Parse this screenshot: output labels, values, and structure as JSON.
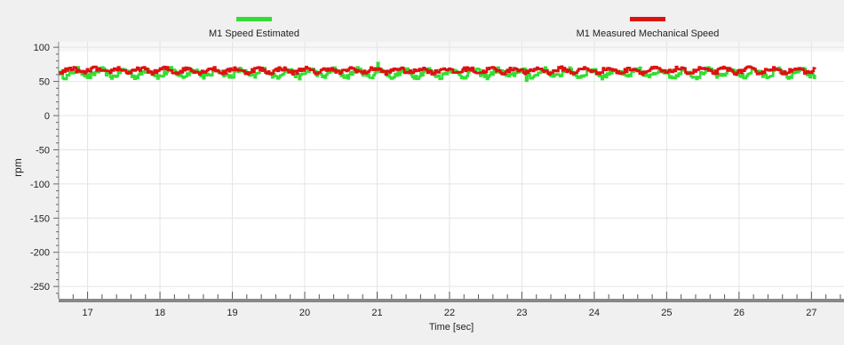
{
  "chart_data": {
    "type": "line",
    "title": "",
    "xlabel": "Time [sec]",
    "ylabel": "rpm",
    "xlim": [
      16.6,
      27.45
    ],
    "ylim": [
      -268,
      108
    ],
    "x_ticks": [
      17,
      18,
      19,
      20,
      21,
      22,
      23,
      24,
      25,
      26,
      27
    ],
    "y_ticks": [
      100,
      50,
      0,
      -50,
      -100,
      -150,
      -200,
      -250
    ],
    "grid": true,
    "legend_position": "top",
    "series": [
      {
        "name": "M1 Speed Estimated",
        "color": "#33dd33",
        "x_range": [
          16.6,
          27.05
        ],
        "mean": 62,
        "amplitude": 5,
        "noise": 4,
        "spike": {
          "x": 21.0,
          "y": 77
        },
        "dip": {
          "x": 23.05,
          "y": 51
        }
      },
      {
        "name": "M1 Measured Mechanical Speed",
        "color": "#dd1111",
        "x_range": [
          16.6,
          27.05
        ],
        "mean": 66,
        "amplitude": 3,
        "noise": 3
      }
    ]
  }
}
